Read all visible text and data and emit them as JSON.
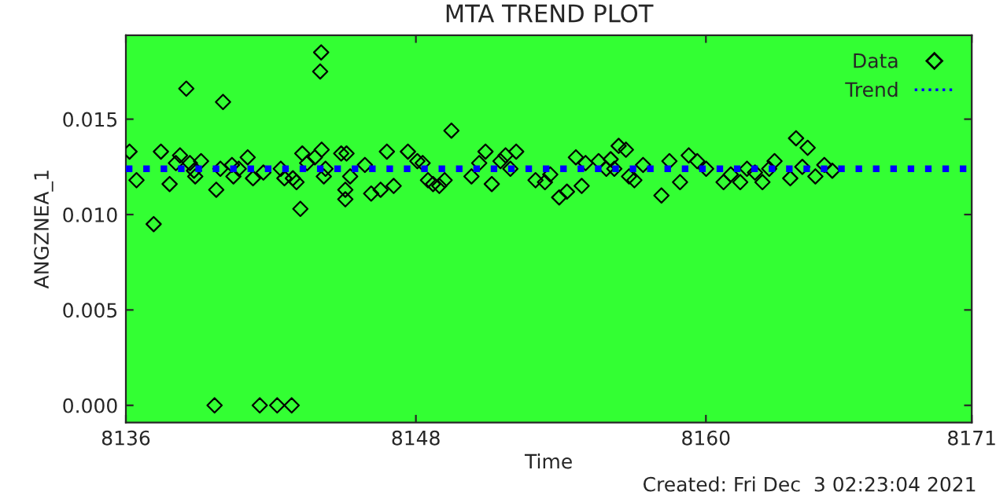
{
  "chart_data": {
    "type": "scatter",
    "title": "MTA TREND PLOT",
    "xlabel": "Time",
    "ylabel": "ANGZNEA_1",
    "annotations": [
      "Created: Fri Dec  3 02:23:04 2021"
    ],
    "xlim": [
      8136,
      8171
    ],
    "xticks": [
      8136,
      8148,
      8160,
      8171
    ],
    "ylim": [
      -0.0009,
      0.0194
    ],
    "yticks": [
      {
        "value": 0,
        "label": "0.000"
      },
      {
        "value": 0.005,
        "label": "0.005"
      },
      {
        "value": 0.01,
        "label": "0.010"
      },
      {
        "value": 0.015,
        "label": "0.015"
      }
    ],
    "grid": false,
    "legend": "top right",
    "series": [
      {
        "name": "Data",
        "marker": "diamond",
        "color": "#000000",
        "x": [
          8136.15,
          8136.44,
          8137.15,
          8137.45,
          8137.81,
          8138.07,
          8138.24,
          8138.5,
          8138.65,
          8138.82,
          8138.87,
          8139.11,
          8139.67,
          8139.74,
          8139.91,
          8140.02,
          8140.39,
          8140.45,
          8140.67,
          8141.04,
          8141.26,
          8141.54,
          8141.69,
          8142.26,
          8142.41,
          8142.56,
          8142.86,
          8142.91,
          8143.06,
          8143.22,
          8143.3,
          8143.5,
          8143.82,
          8144.04,
          8144.08,
          8144.1,
          8144.19,
          8144.26,
          8144.91,
          8145.08,
          8145.08,
          8145.13,
          8145.28,
          8145.89,
          8146.15,
          8146.54,
          8146.8,
          8147.08,
          8147.67,
          8148.06,
          8148.28,
          8148.5,
          8148.71,
          8148.97,
          8149.19,
          8149.47,
          8150.3,
          8150.62,
          8150.88,
          8151.14,
          8151.5,
          8151.71,
          8151.91,
          8152.15,
          8152.95,
          8153.34,
          8153.56,
          8153.93,
          8154.25,
          8154.62,
          8154.86,
          8155.02,
          8155.56,
          8155.88,
          8156.06,
          8156.21,
          8156.39,
          8156.69,
          8156.82,
          8157.04,
          8157.4,
          8158.16,
          8158.49,
          8158.93,
          8159.29,
          8159.64,
          8160.01,
          8160.73,
          8161.03,
          8161.42,
          8161.7,
          8162.03,
          8162.34,
          8162.62,
          8162.84,
          8163.49,
          8163.73,
          8163.99,
          8164.21,
          8164.53,
          8164.9,
          8165.23
        ],
        "values": [
          0.0133,
          0.0118,
          0.0095,
          0.0133,
          0.0116,
          0.0127,
          0.0131,
          0.0166,
          0.0127,
          0.0123,
          0.012,
          0.0128,
          0.0,
          0.0113,
          0.0124,
          0.0159,
          0.0126,
          0.012,
          0.0124,
          0.013,
          0.0119,
          0.0,
          0.0122,
          0.0,
          0.0124,
          0.0119,
          0.0,
          0.0119,
          0.0117,
          0.0103,
          0.0132,
          0.0127,
          0.013,
          0.0175,
          0.0185,
          0.0134,
          0.012,
          0.0124,
          0.0132,
          0.0113,
          0.0108,
          0.0132,
          0.012,
          0.0126,
          0.0111,
          0.0113,
          0.0133,
          0.0115,
          0.0133,
          0.0128,
          0.0127,
          0.0118,
          0.0116,
          0.0115,
          0.0118,
          0.0144,
          0.012,
          0.0127,
          0.0133,
          0.0116,
          0.0128,
          0.0131,
          0.0124,
          0.0133,
          0.0118,
          0.0117,
          0.0121,
          0.0109,
          0.0112,
          0.013,
          0.0115,
          0.0127,
          0.0128,
          0.0124,
          0.0129,
          0.0124,
          0.0136,
          0.0134,
          0.012,
          0.0118,
          0.0126,
          0.011,
          0.0128,
          0.0117,
          0.0131,
          0.0128,
          0.0124,
          0.0117,
          0.0121,
          0.0117,
          0.0124,
          0.0122,
          0.0117,
          0.0124,
          0.0128,
          0.0119,
          0.014,
          0.0125,
          0.0135,
          0.012,
          0.0126,
          0.0123
        ]
      },
      {
        "name": "Trend",
        "type": "line",
        "line_style": "dotted",
        "marker": "none",
        "color": "#0000ff",
        "x": [
          8136,
          8171
        ],
        "values": [
          0.0124,
          0.0124
        ]
      }
    ]
  }
}
